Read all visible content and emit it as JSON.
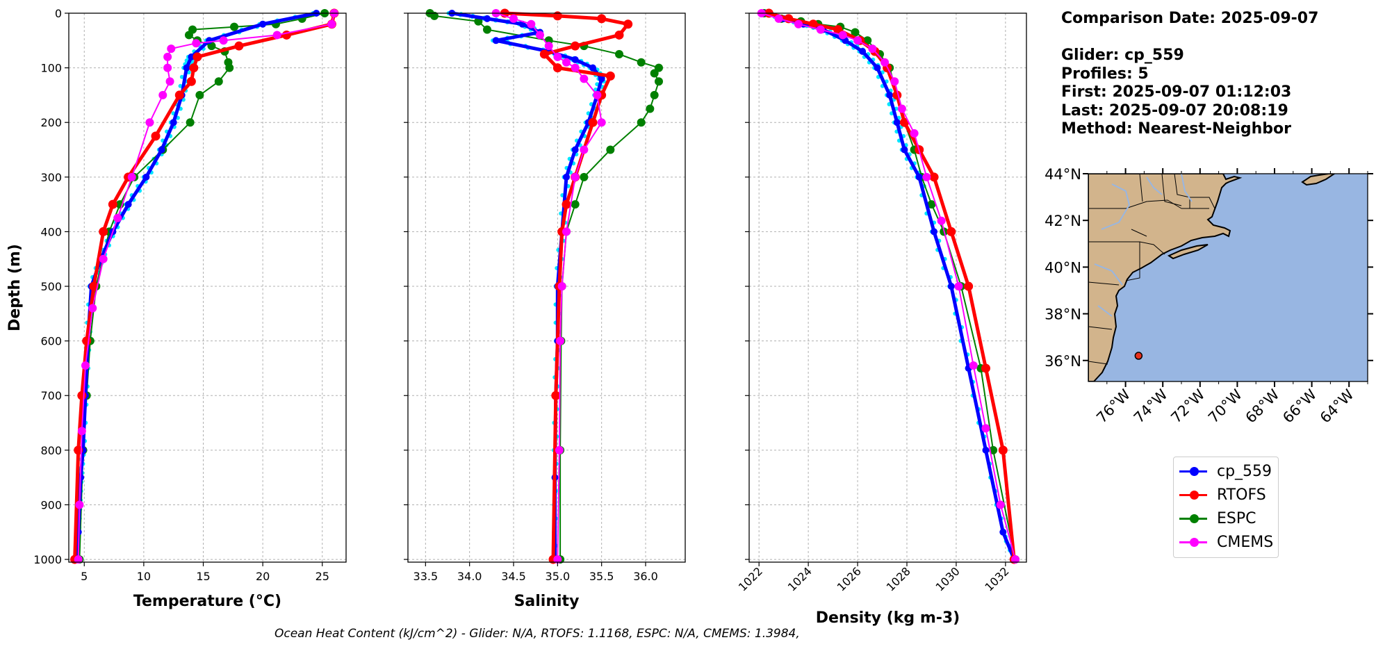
{
  "colors": {
    "glider": "#0000ff",
    "glider_raw": "#00e5ff",
    "rtofs": "#ff0000",
    "espc": "#008000",
    "cmems": "#ff00ff",
    "land": "#d2b48c",
    "ocean": "#98b6e2"
  },
  "info": {
    "comparison": "Comparison Date: 2025-09-07",
    "glider": "Glider: cp_559",
    "profiles": "Profiles: 5",
    "first": "First: 2025-09-07 01:12:03",
    "last": "Last: 2025-09-07 20:08:19",
    "method": "Method: Nearest-Neighbor"
  },
  "footer": "Ocean Heat Content (kJ/cm^2) - Glider: N/A,  RTOFS: 1.1168,  ESPC: N/A,  CMEMS: 1.3984,",
  "legend": [
    {
      "label": "cp_559",
      "color": "#0000ff"
    },
    {
      "label": "RTOFS",
      "color": "#ff0000"
    },
    {
      "label": "ESPC",
      "color": "#008000"
    },
    {
      "label": "CMEMS",
      "color": "#ff00ff"
    }
  ],
  "chart_data": [
    {
      "type": "line",
      "xlabel": "Temperature (°C)",
      "ylabel": "Depth (m)",
      "xlim": [
        3.7,
        27
      ],
      "ylim": [
        1005,
        0
      ],
      "xticks": [
        5,
        10,
        15,
        20,
        25
      ],
      "yticks": [
        0,
        100,
        200,
        300,
        400,
        500,
        600,
        700,
        800,
        900,
        1000
      ],
      "series": [
        {
          "name": "cp_559",
          "x": [
            24.5,
            20,
            15.5,
            14.0,
            13.6,
            13.2,
            12.5,
            11.5,
            10.2,
            8.7,
            7.4,
            6.4,
            5.6,
            5.3,
            5.1,
            4.9,
            4.7,
            4.6,
            4.5,
            4.4
          ],
          "y": [
            0,
            20,
            50,
            80,
            100,
            150,
            200,
            250,
            300,
            350,
            400,
            450,
            500,
            600,
            700,
            800,
            850,
            900,
            950,
            1000
          ]
        },
        {
          "name": "RTOFS",
          "x": [
            26.0,
            25.8,
            22,
            18,
            14.5,
            14.2,
            14.0,
            13.0,
            11.0,
            8.7,
            7.4,
            6.6,
            5.8,
            5.2,
            4.8,
            4.5,
            4.2
          ],
          "y": [
            0,
            20,
            40,
            60,
            80,
            100,
            125,
            150,
            225,
            300,
            350,
            400,
            500,
            600,
            700,
            800,
            1000
          ]
        },
        {
          "name": "ESPC",
          "x": [
            25.2,
            23.3,
            21.1,
            17.6,
            14.1,
            13.8,
            14.5,
            15.7,
            16.8,
            17.1,
            17.2,
            16.3,
            14.7,
            13.9,
            11.6,
            9.2,
            8.0,
            7.1,
            6.0,
            5.5,
            5.2,
            4.9,
            4.6
          ],
          "y": [
            0,
            10,
            20,
            25,
            30,
            40,
            50,
            60,
            70,
            90,
            100,
            125,
            150,
            200,
            250,
            300,
            350,
            400,
            500,
            600,
            700,
            800,
            1000
          ]
        },
        {
          "name": "CMEMS",
          "x": [
            26.0,
            25.8,
            21.2,
            16.7,
            14.4,
            12.3,
            12.0,
            12.0,
            12.2,
            11.6,
            10.5,
            9.0,
            7.8,
            6.6,
            5.7,
            5.1,
            4.8,
            4.6,
            4.5
          ],
          "y": [
            0,
            20,
            40,
            50,
            55,
            65,
            80,
            100,
            125,
            150,
            200,
            300,
            375,
            450,
            540,
            645,
            765,
            900,
            1000
          ]
        }
      ]
    },
    {
      "type": "line",
      "xlabel": "Salinity",
      "ylabel": "",
      "xlim": [
        33.3,
        36.45
      ],
      "ylim": [
        1005,
        0
      ],
      "xticks": [
        33.5,
        34.0,
        34.5,
        35.0,
        35.5,
        36.0
      ],
      "series": [
        {
          "name": "cp_559",
          "x": [
            33.8,
            34.2,
            34.6,
            34.8,
            34.3,
            34.9,
            35.2,
            35.4,
            35.5,
            35.45,
            35.35,
            35.2,
            35.1,
            35.05,
            35.0,
            35.0,
            34.98,
            34.97,
            34.97
          ],
          "y": [
            0,
            10,
            20,
            35,
            50,
            70,
            85,
            100,
            120,
            150,
            200,
            250,
            300,
            400,
            500,
            600,
            700,
            850,
            1000
          ]
        },
        {
          "name": "RTOFS",
          "x": [
            34.4,
            35.0,
            35.5,
            35.8,
            35.7,
            35.2,
            34.85,
            35.0,
            35.6,
            35.5,
            35.4,
            35.2,
            35.1,
            35.05,
            35.02,
            34.98,
            34.95
          ],
          "y": [
            0,
            5,
            10,
            20,
            40,
            60,
            75,
            100,
            115,
            150,
            200,
            300,
            350,
            400,
            500,
            700,
            1000
          ]
        },
        {
          "name": "ESPC",
          "x": [
            33.55,
            33.6,
            34.1,
            34.2,
            34.9,
            35.3,
            35.7,
            35.95,
            36.15,
            36.1,
            36.15,
            36.1,
            36.05,
            35.95,
            35.6,
            35.3,
            35.2,
            35.1,
            35.05,
            35.04,
            35.03,
            35.03
          ],
          "y": [
            0,
            5,
            15,
            30,
            50,
            60,
            75,
            90,
            100,
            110,
            125,
            150,
            175,
            200,
            250,
            300,
            350,
            400,
            500,
            600,
            800,
            1000
          ]
        },
        {
          "name": "CMEMS",
          "x": [
            34.3,
            34.5,
            34.7,
            34.8,
            34.9,
            35.0,
            35.1,
            35.2,
            35.3,
            35.45,
            35.5,
            35.3,
            35.2,
            35.1,
            35.05,
            35.03,
            35.02,
            35.0
          ],
          "y": [
            0,
            10,
            20,
            40,
            60,
            80,
            90,
            100,
            120,
            150,
            200,
            250,
            300,
            400,
            500,
            600,
            800,
            1000
          ]
        }
      ]
    },
    {
      "type": "line",
      "xlabel": "Density (kg m-3)",
      "ylabel": "",
      "xlim": [
        1021.6,
        1032.85
      ],
      "ylim": [
        1005,
        0
      ],
      "xticks": [
        1022,
        1024,
        1026,
        1028,
        1030,
        1032
      ],
      "series": [
        {
          "name": "cp_559",
          "x": [
            1022.3,
            1023.0,
            1023.8,
            1024.6,
            1025.5,
            1026.2,
            1026.8,
            1027.3,
            1027.6,
            1027.9,
            1028.5,
            1029.1,
            1029.8,
            1030.5,
            1031.2,
            1031.9,
            1032.35
          ],
          "y": [
            0,
            10,
            20,
            30,
            50,
            70,
            100,
            150,
            200,
            250,
            300,
            400,
            500,
            650,
            800,
            950,
            1000
          ]
        },
        {
          "name": "RTOFS",
          "x": [
            1022.4,
            1023.2,
            1024.2,
            1025.2,
            1026.1,
            1026.7,
            1027.2,
            1027.6,
            1027.9,
            1028.5,
            1029.1,
            1029.8,
            1030.5,
            1031.2,
            1031.9,
            1032.35
          ],
          "y": [
            0,
            10,
            20,
            30,
            50,
            70,
            100,
            150,
            200,
            250,
            300,
            400,
            500,
            650,
            800,
            1000
          ]
        },
        {
          "name": "ESPC",
          "x": [
            1022.2,
            1022.9,
            1023.7,
            1024.4,
            1025.3,
            1025.9,
            1026.4,
            1026.9,
            1027.3,
            1027.6,
            1027.9,
            1028.3,
            1028.6,
            1029.0,
            1029.5,
            1030.2,
            1031.0,
            1031.5,
            1032.4
          ],
          "y": [
            0,
            10,
            15,
            20,
            25,
            35,
            50,
            75,
            100,
            150,
            200,
            250,
            300,
            350,
            400,
            500,
            650,
            800,
            1000
          ]
        },
        {
          "name": "CMEMS",
          "x": [
            1022.1,
            1022.8,
            1023.6,
            1024.5,
            1025.4,
            1026.0,
            1026.6,
            1027.1,
            1027.5,
            1027.8,
            1028.3,
            1028.8,
            1029.4,
            1030.1,
            1030.7,
            1031.2,
            1031.8,
            1032.4
          ],
          "y": [
            0,
            10,
            20,
            30,
            40,
            50,
            65,
            90,
            125,
            175,
            220,
            300,
            380,
            500,
            645,
            760,
            900,
            1000
          ]
        }
      ]
    }
  ],
  "map": {
    "lon_range": [
      -78,
      -63
    ],
    "lat_range": [
      35.1,
      44.0
    ],
    "lon_ticks": [
      "76°W",
      "74°W",
      "72°W",
      "70°W",
      "68°W",
      "66°W",
      "64°W"
    ],
    "lat_ticks": [
      "44°N",
      "42°N",
      "40°N",
      "38°N",
      "36°N"
    ],
    "glider_position": {
      "lon": -75.3,
      "lat": 36.2
    }
  }
}
